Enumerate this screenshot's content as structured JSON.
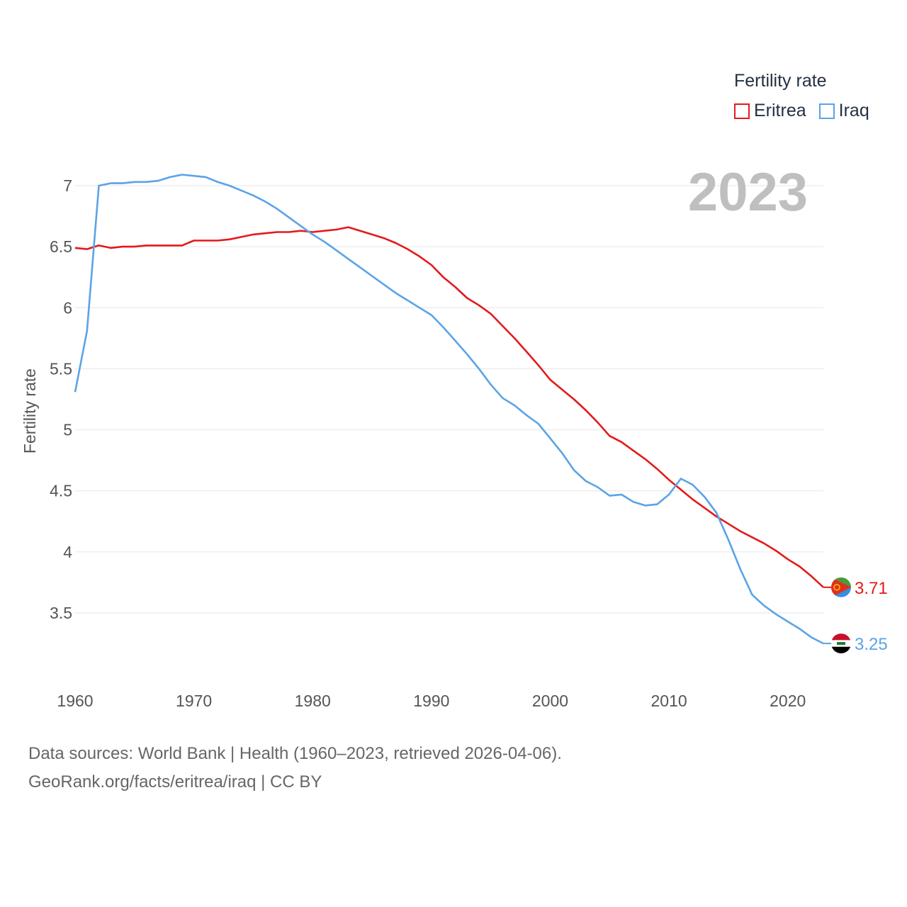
{
  "legend": {
    "title": "Fertility rate",
    "items": [
      {
        "name": "Eritrea",
        "color": "#e31a1c"
      },
      {
        "name": "Iraq",
        "color": "#5ba3e6"
      }
    ]
  },
  "year_label": "2023",
  "source": {
    "line1": "Data sources: World Bank | Health (1960–2023, retrieved 2026-04-06).",
    "line2": "GeoRank.org/facts/eritrea/iraq | CC BY"
  },
  "chart_data": {
    "type": "line",
    "title": "Fertility rate",
    "xlabel": "",
    "ylabel": "Fertility rate",
    "xlim": [
      1960,
      2023
    ],
    "ylim": [
      3.0,
      7.2
    ],
    "x_ticks": [
      1960,
      1970,
      1980,
      1990,
      2000,
      2010,
      2020
    ],
    "y_ticks": [
      3.5,
      4,
      4.5,
      5,
      5.5,
      6,
      6.5,
      7
    ],
    "grid": true,
    "legend_position": "top-right",
    "x": [
      1960,
      1961,
      1962,
      1963,
      1964,
      1965,
      1966,
      1967,
      1968,
      1969,
      1970,
      1971,
      1972,
      1973,
      1974,
      1975,
      1976,
      1977,
      1978,
      1979,
      1980,
      1981,
      1982,
      1983,
      1984,
      1985,
      1986,
      1987,
      1988,
      1989,
      1990,
      1991,
      1992,
      1993,
      1994,
      1995,
      1996,
      1997,
      1998,
      1999,
      2000,
      2001,
      2002,
      2003,
      2004,
      2005,
      2006,
      2007,
      2008,
      2009,
      2010,
      2011,
      2012,
      2013,
      2014,
      2015,
      2016,
      2017,
      2018,
      2019,
      2020,
      2021,
      2022,
      2023
    ],
    "series": [
      {
        "name": "Eritrea",
        "color": "#e31a1c",
        "end_label": "3.71",
        "values": [
          6.49,
          6.48,
          6.51,
          6.49,
          6.5,
          6.5,
          6.51,
          6.51,
          6.51,
          6.51,
          6.55,
          6.55,
          6.55,
          6.56,
          6.58,
          6.6,
          6.61,
          6.62,
          6.62,
          6.63,
          6.62,
          6.63,
          6.64,
          6.66,
          6.63,
          6.6,
          6.57,
          6.53,
          6.48,
          6.42,
          6.35,
          6.25,
          6.17,
          6.08,
          6.02,
          5.95,
          5.85,
          5.75,
          5.64,
          5.53,
          5.41,
          5.33,
          5.25,
          5.16,
          5.06,
          4.95,
          4.9,
          4.83,
          4.76,
          4.68,
          4.59,
          4.51,
          4.43,
          4.36,
          4.29,
          4.23,
          4.17,
          4.12,
          4.07,
          4.01,
          3.94,
          3.88,
          3.8,
          3.71
        ]
      },
      {
        "name": "Iraq",
        "color": "#5ba3e6",
        "end_label": "3.25",
        "values": [
          5.31,
          5.81,
          7.0,
          7.02,
          7.02,
          7.03,
          7.03,
          7.04,
          7.07,
          7.09,
          7.08,
          7.07,
          7.03,
          7.0,
          6.96,
          6.92,
          6.87,
          6.81,
          6.74,
          6.67,
          6.6,
          6.54,
          6.47,
          6.4,
          6.33,
          6.26,
          6.19,
          6.12,
          6.06,
          6.0,
          5.94,
          5.84,
          5.73,
          5.62,
          5.5,
          5.37,
          5.26,
          5.2,
          5.12,
          5.05,
          4.93,
          4.81,
          4.67,
          4.58,
          4.53,
          4.46,
          4.47,
          4.41,
          4.38,
          4.39,
          4.47,
          4.6,
          4.55,
          4.45,
          4.32,
          4.1,
          3.86,
          3.65,
          3.56,
          3.49,
          3.43,
          3.37,
          3.3,
          3.25
        ]
      }
    ]
  }
}
